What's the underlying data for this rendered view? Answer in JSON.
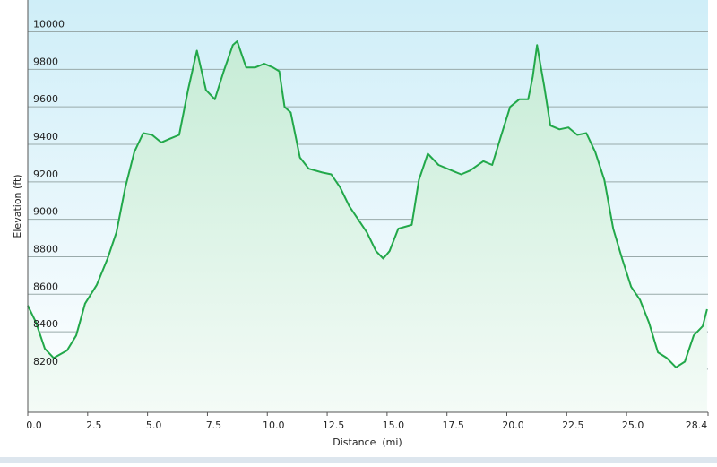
{
  "chart_data": {
    "type": "area",
    "x_label": "Distance  (mi)",
    "y_label": "Elevation (ft)",
    "x": [
      0,
      0.34,
      0.71,
      1.08,
      1.64,
      2.02,
      2.39,
      2.88,
      3.33,
      3.7,
      4.07,
      4.45,
      4.82,
      5.19,
      5.57,
      5.94,
      6.32,
      6.69,
      7.06,
      7.44,
      7.81,
      8.18,
      8.56,
      8.74,
      9.12,
      9.49,
      9.87,
      10.24,
      10.5,
      10.72,
      10.98,
      11.36,
      11.73,
      12.29,
      12.67,
      13.04,
      13.42,
      13.79,
      14.16,
      14.54,
      14.84,
      15.1,
      15.47,
      16.03,
      16.33,
      16.7,
      17.15,
      17.71,
      18.09,
      18.46,
      19.02,
      19.39,
      19.77,
      20.14,
      20.52,
      20.89,
      21.08,
      21.26,
      21.56,
      21.82,
      22.2,
      22.57,
      22.94,
      23.32,
      23.69,
      24.07,
      24.44,
      24.81,
      25.19,
      25.56,
      25.93,
      26.31,
      26.68,
      27.06,
      27.43,
      27.8,
      28.18,
      28.36
    ],
    "values": [
      8540,
      8450,
      8310,
      8260,
      8300,
      8380,
      8550,
      8650,
      8790,
      8930,
      9170,
      9360,
      9460,
      9450,
      9410,
      9430,
      9450,
      9690,
      9900,
      9690,
      9640,
      9790,
      9930,
      9950,
      9810,
      9810,
      9830,
      9810,
      9790,
      9600,
      9570,
      9330,
      9270,
      9250,
      9240,
      9170,
      9070,
      9000,
      8930,
      8830,
      8790,
      8830,
      8950,
      8970,
      9210,
      9350,
      9290,
      9260,
      9240,
      9260,
      9310,
      9290,
      9450,
      9600,
      9640,
      9640,
      9760,
      9930,
      9710,
      9500,
      9480,
      9490,
      9450,
      9460,
      9360,
      9210,
      8950,
      8790,
      8640,
      8570,
      8450,
      8290,
      8260,
      8210,
      8240,
      8380,
      8430,
      8520
    ],
    "color": "#22a84a",
    "xlim": [
      0,
      28.4
    ],
    "xticks": [
      {
        "value": 0,
        "label": "0.0"
      },
      2.5,
      {
        "value": 5,
        "label": "5.0"
      },
      7.5,
      {
        "value": 10,
        "label": "10.0"
      },
      12.5,
      {
        "value": 15,
        "label": "15.0"
      },
      17.5,
      {
        "value": 20,
        "label": "20.0"
      },
      22.5,
      {
        "value": 25,
        "label": "25.0"
      },
      28.4
    ],
    "ylim": [
      7970,
      10170
    ],
    "yticks": [
      8200,
      8400,
      8600,
      8800,
      9000,
      9200,
      9400,
      9600,
      9800,
      10000
    ],
    "grid": true
  }
}
